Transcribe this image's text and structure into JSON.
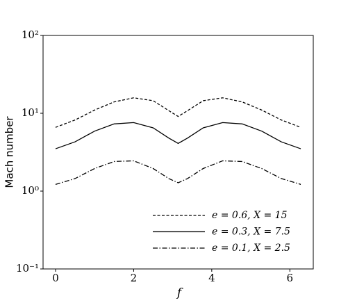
{
  "chart_data": {
    "type": "line",
    "xlabel": "f",
    "ylabel": "Mach number",
    "x": [
      0,
      0.5,
      1,
      1.5,
      2,
      2.5,
      2.9,
      3.14,
      3.38,
      3.78,
      4.28,
      4.78,
      5.28,
      5.78,
      6.28
    ],
    "series": [
      {
        "name": "e = 0.6, X = 15",
        "color": "#000000",
        "linestyle": "dashed",
        "values": [
          6.6,
          8.2,
          11.0,
          14.0,
          15.8,
          14.5,
          10.8,
          9.1,
          10.8,
          14.5,
          15.8,
          14.0,
          11.0,
          8.2,
          6.6
        ]
      },
      {
        "name": "e = 0.3, X = 7.5",
        "color": "#000000",
        "linestyle": "solid",
        "values": [
          3.5,
          4.3,
          5.9,
          7.3,
          7.6,
          6.5,
          4.8,
          4.1,
          4.8,
          6.5,
          7.6,
          7.3,
          5.9,
          4.3,
          3.5
        ]
      },
      {
        "name": "e = 0.1, X = 2.5",
        "color": "#000000",
        "linestyle": "dashdot",
        "values": [
          1.22,
          1.45,
          1.95,
          2.4,
          2.45,
          1.95,
          1.45,
          1.28,
          1.45,
          1.95,
          2.45,
          2.4,
          1.95,
          1.45,
          1.22
        ]
      }
    ],
    "xlim": [
      -0.32,
      6.6
    ],
    "xticks": [
      0,
      2,
      4,
      6
    ],
    "ylim": [
      0.1,
      100
    ],
    "ylog": true,
    "yticks": [
      {
        "value": 0.1,
        "label": "10⁻¹"
      },
      {
        "value": 1,
        "label": "10⁰"
      },
      {
        "value": 10,
        "label": "10¹"
      },
      {
        "value": 100,
        "label": "10²"
      }
    ],
    "legend": "lower right",
    "grid": false
  }
}
